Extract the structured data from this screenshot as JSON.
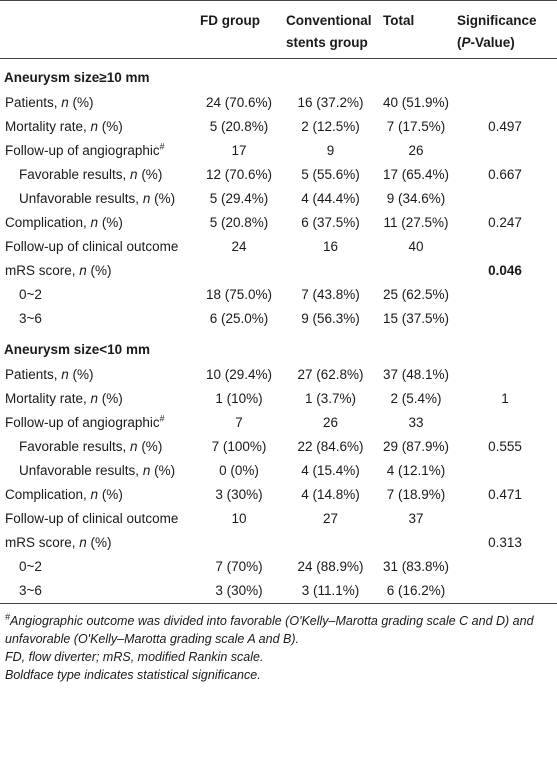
{
  "table": {
    "header": [
      [
        "FD group"
      ],
      [
        "Conventional stents group"
      ],
      [
        "Total"
      ],
      [
        "Significance (",
        {
          "text": "P",
          "style": "italic"
        },
        "-Value)"
      ]
    ],
    "sections": [
      {
        "title": "Aneurysm size≥10 mm",
        "rows": [
          {
            "label": [
              "Patients, ",
              {
                "text": "n",
                "style": "italic"
              },
              " (%)"
            ],
            "cells": [
              "24 (70.6%)",
              "16 (37.2%)",
              "40 (51.9%)",
              null
            ]
          },
          {
            "label": [
              "Mortality rate, ",
              {
                "text": "n",
                "style": "italic"
              },
              " (%)"
            ],
            "cells": [
              "5 (20.8%)",
              "2 (12.5%)",
              "7 (17.5%)",
              "0.497"
            ]
          },
          {
            "label": [
              "Follow-up of angiographic",
              {
                "text": "#",
                "style": "sup"
              }
            ],
            "cells": [
              "17",
              "9",
              "26",
              null
            ]
          },
          {
            "label": [
              "Favorable results, ",
              {
                "text": "n",
                "style": "italic"
              },
              " (%)"
            ],
            "indent": true,
            "cells": [
              "12 (70.6%)",
              "5 (55.6%)",
              "17 (65.4%)",
              "0.667"
            ]
          },
          {
            "label": [
              "Unfavorable results, ",
              {
                "text": "n",
                "style": "italic"
              },
              " (%)"
            ],
            "indent": true,
            "cells": [
              "5 (29.4%)",
              "4 (44.4%)",
              "9 (34.6%)",
              null
            ]
          },
          {
            "label": [
              "Complication, ",
              {
                "text": "n",
                "style": "italic"
              },
              " (%)"
            ],
            "cells": [
              "5 (20.8%)",
              "6 (37.5%)",
              "11 (27.5%)",
              "0.247"
            ]
          },
          {
            "label": [
              "Follow-up of clinical outcome"
            ],
            "cells": [
              "24",
              "16",
              "40",
              null
            ]
          },
          {
            "label": [
              "mRS score, ",
              {
                "text": "n",
                "style": "italic"
              },
              " (%)"
            ],
            "cells": [
              null,
              null,
              null,
              {
                "text": "0.046",
                "style": "bold"
              }
            ]
          },
          {
            "label": [
              "0~2"
            ],
            "indent": true,
            "cells": [
              "18 (75.0%)",
              "7 (43.8%)",
              "25 (62.5%)",
              null
            ]
          },
          {
            "label": [
              "3~6"
            ],
            "indent": true,
            "cells": [
              "6 (25.0%)",
              "9 (56.3%)",
              "15 (37.5%)",
              null
            ]
          }
        ]
      },
      {
        "title": "Aneurysm size<10 mm",
        "rows": [
          {
            "label": [
              "Patients, ",
              {
                "text": "n",
                "style": "italic"
              },
              " (%)"
            ],
            "cells": [
              "10 (29.4%)",
              "27 (62.8%)",
              "37 (48.1%)",
              null
            ]
          },
          {
            "label": [
              "Mortality rate, ",
              {
                "text": "n",
                "style": "italic"
              },
              " (%)"
            ],
            "cells": [
              "1 (10%)",
              "1 (3.7%)",
              "2 (5.4%)",
              "1"
            ]
          },
          {
            "label": [
              "Follow-up of angiographic",
              {
                "text": "#",
                "style": "sup"
              }
            ],
            "cells": [
              "7",
              "26",
              "33",
              null
            ]
          },
          {
            "label": [
              "Favorable results, ",
              {
                "text": "n",
                "style": "italic"
              },
              " (%)"
            ],
            "indent": true,
            "cells": [
              "7 (100%)",
              "22 (84.6%)",
              "29 (87.9%)",
              "0.555"
            ]
          },
          {
            "label": [
              "Unfavorable results, ",
              {
                "text": "n",
                "style": "italic"
              },
              " (%)"
            ],
            "indent": true,
            "cells": [
              "0 (0%)",
              "4 (15.4%)",
              "4 (12.1%)",
              null
            ]
          },
          {
            "label": [
              "Complication, ",
              {
                "text": "n",
                "style": "italic"
              },
              " (%)"
            ],
            "cells": [
              "3 (30%)",
              "4 (14.8%)",
              "7 (18.9%)",
              "0.471"
            ]
          },
          {
            "label": [
              "Follow-up of clinical outcome"
            ],
            "cells": [
              "10",
              "27",
              "37",
              null
            ]
          },
          {
            "label": [
              "mRS score, ",
              {
                "text": "n",
                "style": "italic"
              },
              " (%)"
            ],
            "cells": [
              null,
              null,
              null,
              "0.313"
            ]
          },
          {
            "label": [
              "0~2"
            ],
            "indent": true,
            "cells": [
              "7 (70%)",
              "24 (88.9%)",
              "31 (83.8%)",
              null
            ]
          },
          {
            "label": [
              "3~6"
            ],
            "indent": true,
            "cells": [
              "3 (30%)",
              "3 (11.1%)",
              "6 (16.2%)",
              null
            ]
          }
        ]
      }
    ],
    "footnotes": [
      [
        {
          "text": "#",
          "style": "sup"
        },
        "Angiographic outcome was divided into favorable (O'Kelly–Marotta grading scale C and D) and unfavorable (O'Kelly–Marotta grading scale A and B)."
      ],
      [
        "FD, flow diverter; mRS, modified Rankin scale."
      ],
      [
        "Boldface type indicates statistical significance."
      ]
    ]
  }
}
